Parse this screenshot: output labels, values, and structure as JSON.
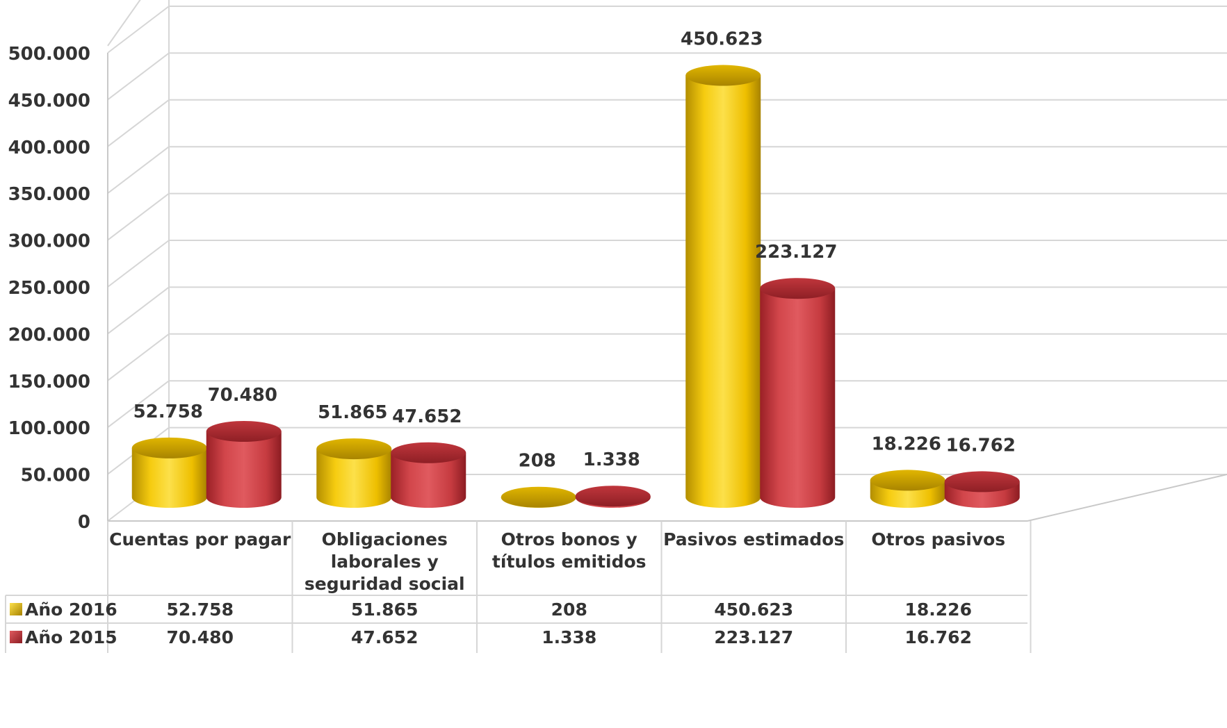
{
  "chart_data": {
    "type": "bar",
    "style": "3d-cylinder",
    "categories": [
      "Cuentas por pagar",
      "Obligaciones laborales y seguridad social",
      "Otros bonos y títulos emitidos",
      "Pasivos estimados",
      "Otros pasivos"
    ],
    "category_lines": [
      [
        "Cuentas por pagar"
      ],
      [
        "Obligaciones",
        "laborales y",
        "seguridad social"
      ],
      [
        "Otros bonos y",
        "títulos emitidos"
      ],
      [
        "Pasivos estimados"
      ],
      [
        "Otros pasivos"
      ]
    ],
    "series": [
      {
        "name": "Año 2016",
        "color": "#F2C200",
        "values": [
          52758,
          51865,
          208,
          450623,
          18226
        ],
        "labels": [
          "52.758",
          "51.865",
          "208",
          "450.623",
          "18.226"
        ]
      },
      {
        "name": "Año 2015",
        "color": "#CC3F44",
        "values": [
          70480,
          47652,
          1338,
          223127,
          16762
        ],
        "labels": [
          "70.480",
          "47.652",
          "1.338",
          "223.127",
          "16.762"
        ]
      }
    ],
    "ylim": [
      0,
      500000
    ],
    "yticks": [
      0,
      50000,
      100000,
      150000,
      200000,
      250000,
      300000,
      350000,
      400000,
      450000,
      500000
    ],
    "ytick_labels": [
      "0",
      "50.000",
      "100.000",
      "150.000",
      "200.000",
      "250.000",
      "300.000",
      "350.000",
      "400.000",
      "450.000",
      "500.000"
    ],
    "grid": true,
    "data_table": true,
    "title": "",
    "xlabel": "",
    "ylabel": ""
  }
}
